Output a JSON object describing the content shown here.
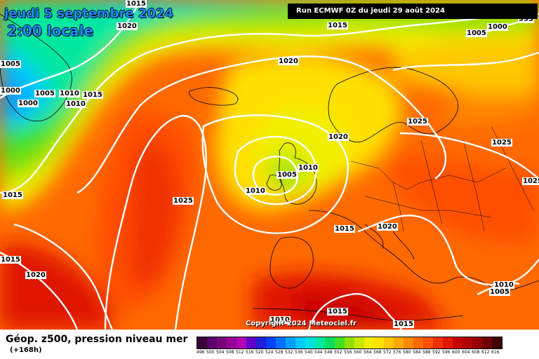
{
  "header": {
    "date": "jeudi 5 septembre 2024",
    "time": "2:00 locale",
    "run": "Run ECMWF 0Z du jeudi 29 août 2024"
  },
  "copyright": "Copyright 2024 Meteociel.fr",
  "footer": {
    "title": "Géop. z500, pression niveau mer",
    "subtitle": "(+168h)"
  },
  "isobar_labels": [
    "1015",
    "1020",
    "1015",
    "1005",
    "1000",
    "995",
    "1005",
    "1000",
    "1005",
    "1010",
    "1015",
    "1010",
    "1000",
    "1020",
    "1025",
    "1020",
    "1010",
    "1005",
    "1010",
    "1015",
    "1025",
    "1015",
    "1025",
    "1025",
    "1020",
    "1015",
    "1020",
    "1010",
    "1005",
    "1015",
    "1015",
    "1010"
  ],
  "legend": {
    "values": [
      "496",
      "500",
      "504",
      "508",
      "512",
      "516",
      "520",
      "524",
      "528",
      "532",
      "536",
      "540",
      "544",
      "548",
      "552",
      "556",
      "560",
      "564",
      "568",
      "572",
      "576",
      "580",
      "584",
      "588",
      "592",
      "596",
      "600",
      "604",
      "608",
      "612",
      "616"
    ],
    "colors": [
      "#3a003a",
      "#5c006c",
      "#7a007a",
      "#960096",
      "#b400b4",
      "#6000c8",
      "#2020d8",
      "#0040ff",
      "#0070ff",
      "#00a0ff",
      "#00c8ff",
      "#00e0e0",
      "#00e8a0",
      "#00e060",
      "#40e020",
      "#90e000",
      "#c8e800",
      "#f0f000",
      "#ffe000",
      "#ffc800",
      "#ffa800",
      "#ff8800",
      "#ff6a00",
      "#ff5000",
      "#f03000",
      "#e01800",
      "#c80000",
      "#b00000",
      "#960000",
      "#700000",
      "#400000"
    ]
  }
}
